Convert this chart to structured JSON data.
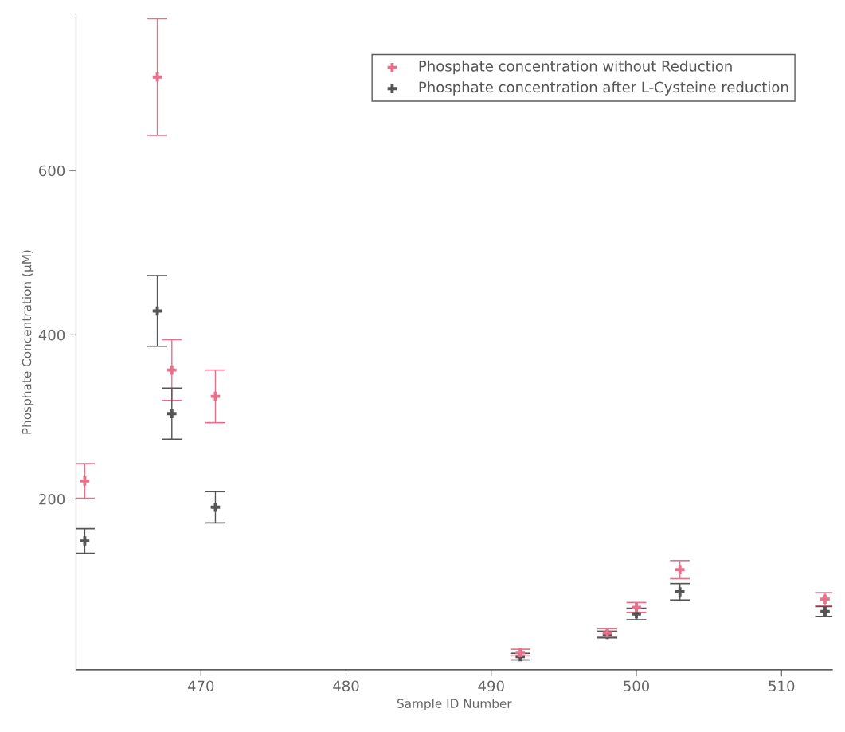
{
  "chart_data": {
    "type": "scatter",
    "xlabel": "Sample ID Number",
    "ylabel": "Phosphate Concentration (μM)",
    "x": [
      462,
      467,
      468,
      471,
      492,
      498,
      500,
      503,
      513
    ],
    "series": [
      {
        "name": "Phosphate concentration without Reduction",
        "color": "#e8708a",
        "values": [
          222,
          714,
          357,
          325,
          13,
          37,
          68,
          114,
          78
        ],
        "errors": [
          21,
          71,
          37,
          32,
          4,
          5,
          6,
          11,
          8
        ]
      },
      {
        "name": "Phosphate concentration after L-Cysteine reduction",
        "color": "#555555",
        "values": [
          149,
          429,
          304,
          190,
          8,
          35,
          60,
          87,
          63
        ],
        "errors": [
          15,
          43,
          31,
          19,
          4,
          4,
          7,
          10,
          6
        ]
      }
    ],
    "xlim": [
      461.4,
      513.5
    ],
    "ylim": [
      -8,
      790
    ],
    "xticks": [
      470,
      480,
      490,
      500,
      510
    ],
    "yticks": [
      200,
      400,
      600
    ],
    "marker": "cross",
    "grid": false,
    "legend": "top right"
  }
}
